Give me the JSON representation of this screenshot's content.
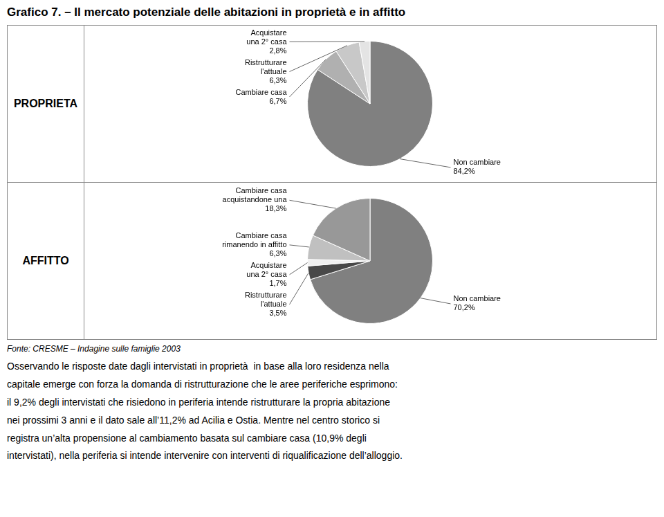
{
  "chart_data": [
    {
      "type": "pie",
      "title": "Grafico 7. – Il mercato potenziale delle abitazioni in proprietà e in affitto",
      "subtitle": "PROPRIETA",
      "categories": [
        "Non cambiare",
        "Cambiare casa",
        "Ristrutturare\nl'attuale",
        "Acquistare\nuna 2° casa"
      ],
      "values": [
        84.2,
        6.7,
        6.3,
        2.8
      ],
      "value_labels": [
        "84,2%",
        "6,7%",
        "6,3%",
        "2,8%"
      ],
      "colors": [
        "#808080",
        "#b0b0b0",
        "#c8c8c8",
        "#e4e4e4"
      ],
      "data_labels": true
    },
    {
      "type": "pie",
      "subtitle": "AFFITTO",
      "categories": [
        "Non cambiare",
        "Ristrutturare\nl'attuale",
        "Acquistare\nuna 2° casa",
        "Cambiare casa\nrimanendo in affitto",
        "Cambiare casa\nacquistandone una"
      ],
      "values": [
        70.2,
        3.5,
        1.7,
        6.3,
        18.3
      ],
      "value_labels": [
        "70,2%",
        "3,5%",
        "1,7%",
        "6,3%",
        "18,3%"
      ],
      "colors": [
        "#808080",
        "#484848",
        "#f0f0f0",
        "#c0c0c0",
        "#989898"
      ],
      "data_labels": true,
      "annotations": [
        "Fonte: CRESME – Indagine sulle famiglie 2003",
        "Osservando le risposte date dagli intervistati in proprietà  in base alla loro residenza nella",
        "capitale emerge con forza la domanda di ristrutturazione che le aree periferiche esprimono:",
        "il 9,2% degli intervistati che risiedono in periferia intende ristrutturare la propria abitazione",
        "nei prossimi 3 anni e il dato sale all’11,2% ad Acilia e Ostia. Mentre nel centro storico si",
        "registra un’alta propensione al cambiamento basata sul cambiare casa (10,9% degli",
        "intervistati), nella periferia si intende intervenire con interventi di riqualificazione dell’alloggio."
      ]
    }
  ]
}
